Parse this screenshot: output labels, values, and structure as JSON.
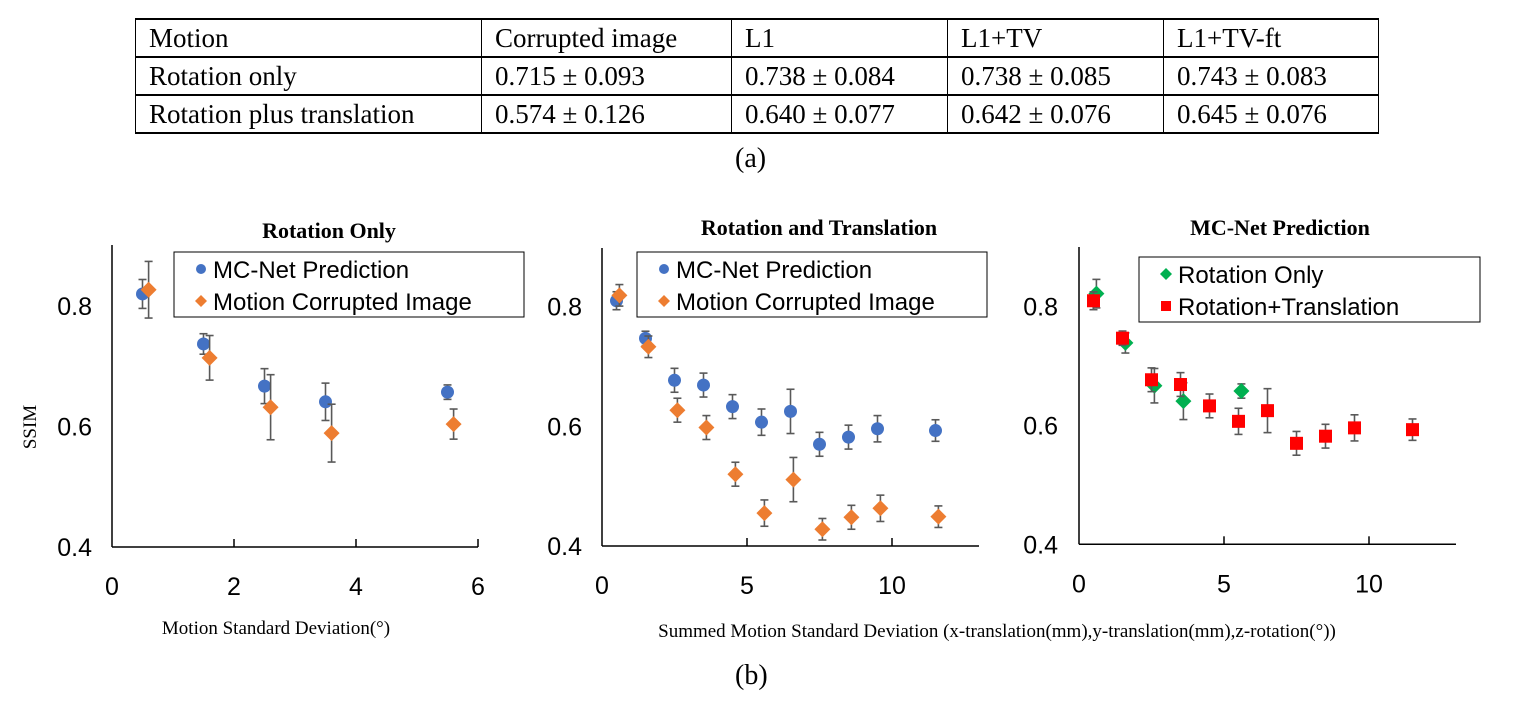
{
  "table": {
    "headers": [
      "Motion",
      "Corrupted image",
      "L1",
      "L1+TV",
      "L1+TV-ft"
    ],
    "rows": [
      [
        "Rotation only",
        "0.715 ± 0.093",
        "0.738 ± 0.084",
        "0.738 ± 0.085",
        "0.743 ± 0.083"
      ],
      [
        "Rotation plus translation",
        "0.574 ± 0.126",
        "0.640 ± 0.077",
        "0.642 ± 0.076",
        "0.645 ± 0.076"
      ]
    ],
    "caption": "(a)"
  },
  "figure_caption": "(b)",
  "colors": {
    "blue": "#4472c4",
    "orange": "#ed7d31",
    "green": "#00b050",
    "red": "#ff0000",
    "errorbar": "#595959"
  },
  "chart_data": [
    {
      "type": "scatter",
      "title": "Rotation Only",
      "xlabel": "Motion Standard Deviation(°)",
      "ylabel": "SSIM",
      "xlim": [
        0,
        6
      ],
      "ylim": [
        0.4,
        0.9
      ],
      "xticks": [
        "0",
        "2",
        "4",
        "6"
      ],
      "yticks": [
        "0.4",
        "0.6",
        "0.8"
      ],
      "grid": false,
      "legend": "top-right",
      "series": [
        {
          "name": "MC-Net Prediction",
          "marker": "circle",
          "color": "#4472c4",
          "x": [
            0.5,
            1.5,
            2.5,
            3.5,
            5.5
          ],
          "y": [
            0.82,
            0.737,
            0.667,
            0.641,
            0.657
          ],
          "err": [
            0.024,
            0.017,
            0.029,
            0.031,
            0.012
          ]
        },
        {
          "name": "Motion Corrupted Image",
          "marker": "diamond",
          "color": "#ed7d31",
          "x": [
            0.6,
            1.6,
            2.6,
            3.6,
            5.6
          ],
          "y": [
            0.827,
            0.714,
            0.632,
            0.589,
            0.604
          ],
          "err": [
            0.047,
            0.037,
            0.054,
            0.048,
            0.025
          ]
        }
      ]
    },
    {
      "type": "scatter",
      "title": "Rotation and Translation",
      "xlabel": "Summed Motion Standard Deviation (x-translation(mm),y-translation(mm),z-rotation(°))",
      "ylabel": "",
      "xlim": [
        0,
        13
      ],
      "ylim": [
        0.4,
        0.9
      ],
      "xticks": [
        "0",
        "5",
        "10"
      ],
      "yticks": [
        "0.4",
        "0.6",
        "0.8"
      ],
      "grid": false,
      "legend": "top-right",
      "series": [
        {
          "name": "MC-Net Prediction",
          "marker": "circle",
          "color": "#4472c4",
          "x": [
            0.5,
            1.5,
            2.5,
            3.5,
            4.5,
            5.5,
            6.5,
            7.5,
            8.5,
            9.5,
            11.5
          ],
          "y": [
            0.81,
            0.747,
            0.677,
            0.669,
            0.633,
            0.607,
            0.625,
            0.57,
            0.582,
            0.596,
            0.593
          ],
          "err": [
            0.015,
            0.012,
            0.02,
            0.02,
            0.02,
            0.022,
            0.037,
            0.02,
            0.02,
            0.022,
            0.018
          ]
        },
        {
          "name": "Motion Corrupted Image",
          "marker": "diamond",
          "color": "#ed7d31",
          "x": [
            0.6,
            1.6,
            2.6,
            3.6,
            4.6,
            5.6,
            6.6,
            7.6,
            8.6,
            9.6,
            11.6
          ],
          "y": [
            0.819,
            0.733,
            0.627,
            0.598,
            0.52,
            0.455,
            0.511,
            0.428,
            0.448,
            0.463,
            0.449
          ],
          "err": [
            0.018,
            0.018,
            0.02,
            0.02,
            0.02,
            0.022,
            0.037,
            0.018,
            0.02,
            0.022,
            0.018
          ]
        }
      ]
    },
    {
      "type": "scatter",
      "title": "MC-Net Prediction",
      "xlabel": "",
      "ylabel": "",
      "xlim": [
        0,
        13
      ],
      "ylim": [
        0.4,
        0.9
      ],
      "xticks": [
        "0",
        "5",
        "10"
      ],
      "yticks": [
        "0.4",
        "0.6",
        "0.8"
      ],
      "grid": false,
      "legend": "top-right",
      "series": [
        {
          "name": "Rotation Only",
          "marker": "diamond",
          "color": "#00b050",
          "x": [
            0.6,
            1.6,
            2.6,
            3.6,
            5.6
          ],
          "y": [
            0.822,
            0.739,
            0.667,
            0.641,
            0.658
          ],
          "err": [
            0.024,
            0.017,
            0.029,
            0.031,
            0.012
          ]
        },
        {
          "name": "Rotation+Translation",
          "marker": "square",
          "color": "#ff0000",
          "x": [
            0.5,
            1.5,
            2.5,
            3.5,
            4.5,
            5.5,
            6.5,
            7.5,
            8.5,
            9.5,
            11.5
          ],
          "y": [
            0.81,
            0.747,
            0.677,
            0.669,
            0.633,
            0.607,
            0.625,
            0.57,
            0.582,
            0.596,
            0.593
          ],
          "err": [
            0.015,
            0.012,
            0.02,
            0.02,
            0.02,
            0.022,
            0.037,
            0.02,
            0.02,
            0.022,
            0.018
          ]
        }
      ]
    }
  ]
}
